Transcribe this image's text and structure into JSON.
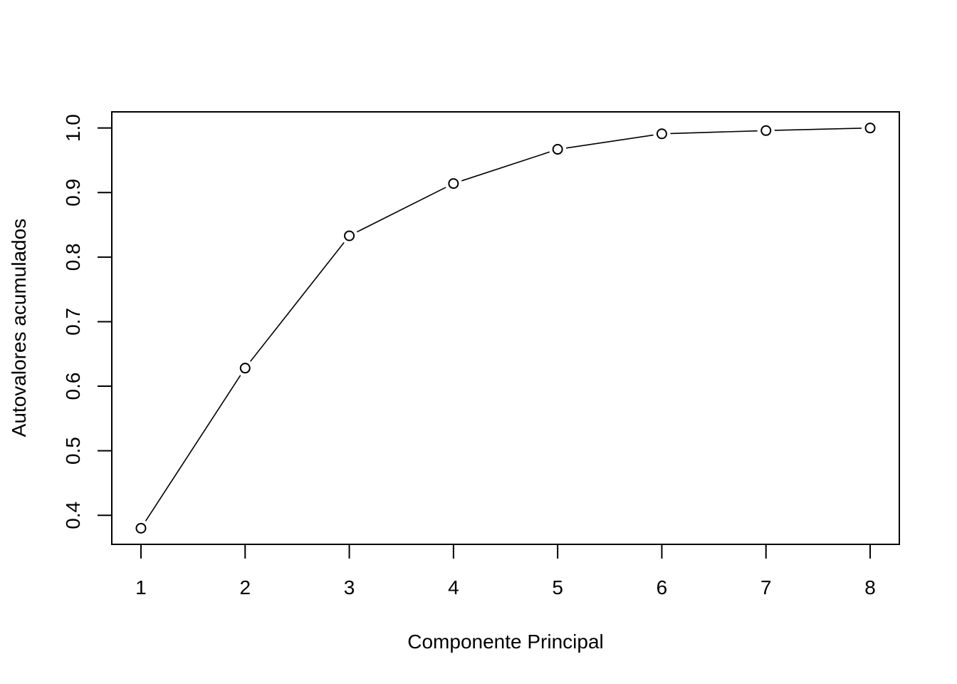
{
  "chart_data": {
    "type": "line",
    "title": "",
    "xlabel": "Componente Principal",
    "ylabel": "Autovalores acumulados",
    "x": [
      1,
      2,
      3,
      4,
      5,
      6,
      7,
      8
    ],
    "series": [
      {
        "values": [
          0.38,
          0.628,
          0.833,
          0.914,
          0.967,
          0.991,
          0.996,
          1.0
        ]
      }
    ],
    "xticks": [
      "1",
      "2",
      "3",
      "4",
      "5",
      "6",
      "7",
      "8"
    ],
    "yticks": [
      "0.4",
      "0.5",
      "0.6",
      "0.7",
      "0.8",
      "0.9",
      "1.0"
    ],
    "xlim": [
      0.72,
      8.28
    ],
    "ylim": [
      0.355,
      1.025
    ],
    "grid": false,
    "marker": "open-circle",
    "line_color": "#000000"
  }
}
